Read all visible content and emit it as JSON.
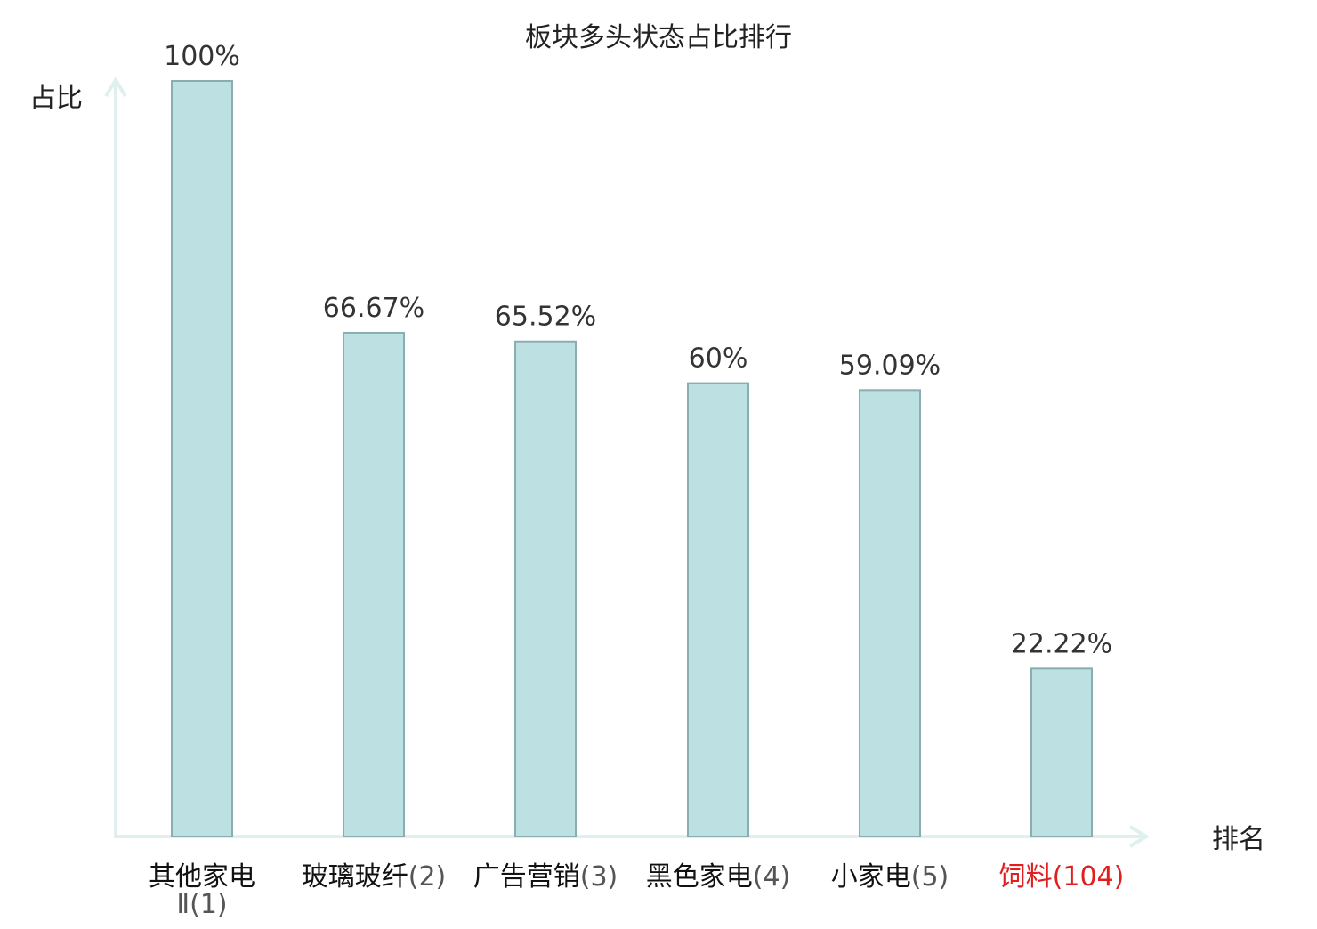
{
  "chart_data": {
    "type": "bar",
    "title": "板块多头状态占比排行",
    "ylabel": "占比",
    "xlabel": "排名",
    "categories": [
      {
        "name_lines": [
          "其他家电",
          "Ⅱ"
        ],
        "rank": "(1)"
      },
      {
        "name_lines": [
          "玻璃玻纤"
        ],
        "rank": "(2)"
      },
      {
        "name_lines": [
          "广告营销"
        ],
        "rank": "(3)"
      },
      {
        "name_lines": [
          "黑色家电"
        ],
        "rank": "(4)"
      },
      {
        "name_lines": [
          "小家电"
        ],
        "rank": "(5)"
      },
      {
        "name_lines": [
          "饲料"
        ],
        "rank": "(104)",
        "highlight": true
      }
    ],
    "values": [
      100,
      66.67,
      65.52,
      60,
      59.09,
      22.22
    ],
    "value_labels": [
      "100%",
      "66.67%",
      "65.52%",
      "60%",
      "59.09%",
      "22.22%"
    ],
    "ylim": [
      0,
      100
    ],
    "grid": false,
    "colors": {
      "bar_fill": "#bde0e3",
      "bar_stroke": "#8aaeb0",
      "axis": "#dff0ee",
      "text": "#333333",
      "rank_text": "#555555",
      "highlight": "#e02020"
    }
  }
}
